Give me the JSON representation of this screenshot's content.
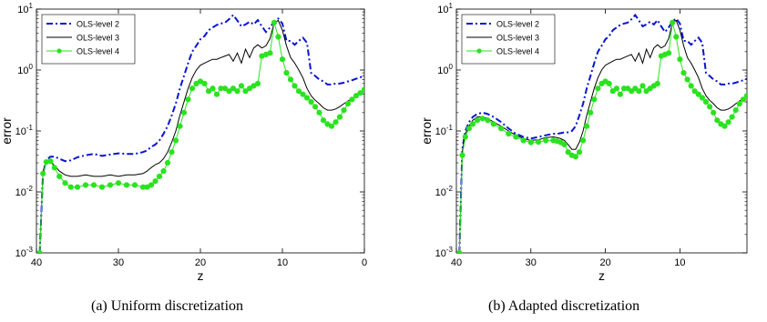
{
  "captions": [
    "(a) Uniform discretization",
    "(b) Adapted discretization"
  ],
  "colors": {
    "level2": "#0a14d2",
    "level3": "#000000",
    "level4": "#29e31f"
  },
  "chart_data": [
    {
      "type": "line",
      "xlabel": "z",
      "ylabel": "error",
      "xlim": [
        40,
        0
      ],
      "x_reversed": true,
      "ylim": [
        0.001,
        10
      ],
      "y_scale": "log",
      "x_ticks": [
        40,
        30,
        20,
        10,
        0
      ],
      "y_tick_labels": [
        "10^-3",
        "10^-2",
        "10^-1",
        "10^0",
        "10^1"
      ],
      "legend": "top-left",
      "series": [
        {
          "name": "OLS-level 2",
          "style": "dash-dot",
          "x": [
            39.6,
            39.2,
            38.8,
            38.3,
            37.8,
            37.2,
            36.5,
            35.8,
            35,
            34,
            33,
            32,
            31,
            30,
            29,
            28,
            27,
            26.5,
            26,
            25.5,
            25,
            24.5,
            24,
            23.5,
            23,
            22.5,
            22,
            21.5,
            21,
            20.5,
            20,
            19.5,
            19,
            18.5,
            18,
            17.5,
            17,
            16.5,
            16,
            15.5,
            15,
            14.5,
            14,
            13.5,
            13,
            12.5,
            12,
            11.5,
            11,
            10.5,
            10,
            9.5,
            9,
            8.5,
            8,
            7.5,
            7,
            6.5,
            6,
            5.5,
            5,
            4.5,
            4,
            3.5,
            3,
            2.5,
            2,
            1.5,
            1,
            0.5,
            0
          ],
          "y": [
            0.001,
            0.02,
            0.033,
            0.038,
            0.038,
            0.035,
            0.032,
            0.033,
            0.037,
            0.04,
            0.042,
            0.039,
            0.041,
            0.043,
            0.042,
            0.042,
            0.045,
            0.048,
            0.055,
            0.06,
            0.07,
            0.09,
            0.12,
            0.18,
            0.28,
            0.5,
            0.8,
            1.3,
            2.0,
            2.5,
            3.2,
            3.6,
            4.5,
            5.0,
            5.5,
            5.8,
            6.0,
            6.8,
            8.0,
            6.5,
            5.2,
            5.6,
            6.2,
            5.6,
            6.6,
            5.2,
            4.2,
            5.0,
            6.3,
            7.0,
            5.8,
            3.0,
            3.0,
            2.6,
            3.0,
            3.4,
            2.8,
            0.9,
            0.8,
            0.7,
            0.65,
            0.58,
            0.58,
            0.6,
            0.6,
            0.62,
            0.65,
            0.68,
            0.72,
            0.76,
            0.8
          ]
        },
        {
          "name": "OLS-level 3",
          "style": "solid",
          "x": [
            39.6,
            39.2,
            38.8,
            38.3,
            37.8,
            37.2,
            36.5,
            35.8,
            35,
            34,
            33,
            32,
            31,
            30,
            29,
            28,
            27,
            26.5,
            26,
            25.5,
            25,
            24.5,
            24,
            23.5,
            23,
            22.5,
            22,
            21.5,
            21,
            20.5,
            20,
            19.5,
            19,
            18.5,
            18,
            17.5,
            17,
            16.5,
            16,
            15.5,
            15,
            14.5,
            14,
            13.5,
            13,
            12.5,
            12,
            11.5,
            11,
            10.5,
            10,
            9.5,
            9,
            8.5,
            8,
            7.5,
            7,
            6.5,
            6,
            5.5,
            5,
            4.5,
            4,
            3.5,
            3,
            2.5,
            2,
            1.5,
            1,
            0.5,
            0
          ],
          "y": [
            0.001,
            0.022,
            0.03,
            0.032,
            0.027,
            0.022,
            0.019,
            0.018,
            0.018,
            0.019,
            0.018,
            0.018,
            0.019,
            0.018,
            0.019,
            0.019,
            0.02,
            0.022,
            0.025,
            0.028,
            0.03,
            0.035,
            0.045,
            0.065,
            0.1,
            0.18,
            0.3,
            0.5,
            0.75,
            1.0,
            1.2,
            1.3,
            1.4,
            1.5,
            1.5,
            1.6,
            1.7,
            1.8,
            1.4,
            1.9,
            1.3,
            2.2,
            1.6,
            2.3,
            2.6,
            2.3,
            2.5,
            3.3,
            6.0,
            6.5,
            4.5,
            2.5,
            1.6,
            1.3,
            1.0,
            0.75,
            0.5,
            0.38,
            0.32,
            0.28,
            0.24,
            0.22,
            0.22,
            0.23,
            0.25,
            0.28,
            0.31,
            0.34,
            0.37,
            0.41,
            0.45
          ]
        },
        {
          "name": "OLS-level 4",
          "style": "solid-markers",
          "x": [
            39.6,
            39.2,
            38.8,
            38.3,
            37.8,
            37.2,
            36.5,
            35.8,
            35,
            34,
            33,
            32,
            31,
            30,
            29,
            28,
            27,
            26.5,
            26,
            25.5,
            25,
            24.5,
            24,
            23.5,
            23,
            22.5,
            22,
            21.5,
            21,
            20.5,
            20,
            19.5,
            19,
            18.5,
            18,
            17.5,
            17,
            16.5,
            16,
            15.5,
            15,
            14.5,
            14,
            13.5,
            13,
            12.5,
            12,
            11.5,
            11,
            10.5,
            10,
            9.5,
            9,
            8.5,
            8,
            7.5,
            7,
            6.5,
            6,
            5.5,
            5,
            4.5,
            4,
            3.5,
            3,
            2.5,
            2,
            1.5,
            1,
            0.5,
            0
          ],
          "y": [
            0.001,
            0.02,
            0.031,
            0.032,
            0.025,
            0.018,
            0.014,
            0.012,
            0.012,
            0.013,
            0.013,
            0.012,
            0.013,
            0.014,
            0.013,
            0.013,
            0.012,
            0.012,
            0.013,
            0.015,
            0.018,
            0.022,
            0.03,
            0.045,
            0.07,
            0.12,
            0.2,
            0.33,
            0.5,
            0.6,
            0.65,
            0.6,
            0.45,
            0.5,
            0.4,
            0.5,
            0.5,
            0.45,
            0.5,
            0.45,
            0.55,
            0.45,
            0.5,
            0.55,
            0.6,
            1.7,
            1.8,
            1.9,
            6.0,
            3.5,
            1.5,
            0.9,
            0.7,
            0.55,
            0.45,
            0.4,
            0.35,
            0.3,
            0.25,
            0.2,
            0.15,
            0.13,
            0.12,
            0.14,
            0.17,
            0.22,
            0.28,
            0.33,
            0.38,
            0.42,
            0.48
          ]
        }
      ]
    },
    {
      "type": "line",
      "xlabel": "z",
      "ylabel": "error",
      "xlim": [
        40,
        1
      ],
      "x_reversed": true,
      "ylim": [
        0.001,
        10
      ],
      "y_scale": "log",
      "x_ticks": [
        40,
        30,
        20,
        10
      ],
      "y_tick_labels": [
        "10^-3",
        "10^-2",
        "10^-1",
        "10^0",
        "10^1"
      ],
      "legend": "top-left",
      "series": [
        {
          "name": "OLS-level 2",
          "style": "dash-dot",
          "x": [
            39.6,
            39.2,
            38.8,
            38.3,
            37.8,
            37.2,
            36.5,
            35.8,
            35,
            34,
            33,
            32,
            31,
            30,
            29,
            28,
            27,
            26.5,
            26,
            25.5,
            25,
            24.5,
            24,
            23.5,
            23,
            22.5,
            22,
            21.5,
            21,
            20.5,
            20,
            19.5,
            19,
            18.5,
            18,
            17.5,
            17,
            16.5,
            16,
            15.5,
            15,
            14.5,
            14,
            13.5,
            13,
            12.5,
            12,
            11.5,
            11,
            10.5,
            10,
            9.5,
            9,
            8.5,
            8,
            7.5,
            7,
            6.5,
            6,
            5.5,
            5,
            4.5,
            4,
            3.5,
            3,
            2.5,
            2,
            1.5,
            1
          ],
          "y": [
            0.001,
            0.05,
            0.1,
            0.14,
            0.17,
            0.19,
            0.2,
            0.19,
            0.17,
            0.14,
            0.11,
            0.09,
            0.08,
            0.075,
            0.08,
            0.085,
            0.09,
            0.09,
            0.092,
            0.095,
            0.095,
            0.1,
            0.12,
            0.18,
            0.28,
            0.5,
            0.8,
            1.3,
            2.0,
            2.5,
            3.2,
            3.6,
            4.5,
            5.0,
            5.5,
            5.8,
            6.0,
            6.8,
            8.0,
            6.5,
            5.2,
            5.6,
            6.2,
            5.6,
            6.6,
            5.2,
            4.2,
            5.0,
            6.3,
            7.0,
            5.8,
            3.0,
            3.0,
            2.6,
            3.0,
            3.4,
            2.8,
            0.9,
            0.8,
            0.7,
            0.65,
            0.58,
            0.58,
            0.6,
            0.6,
            0.62,
            0.65,
            0.68,
            0.72
          ]
        },
        {
          "name": "OLS-level 3",
          "style": "solid",
          "x": [
            39.6,
            39.2,
            38.8,
            38.3,
            37.8,
            37.2,
            36.5,
            35.8,
            35,
            34,
            33,
            32,
            31,
            30,
            29,
            28,
            27,
            26.5,
            26,
            25.5,
            25,
            24.5,
            24,
            23.5,
            23,
            22.5,
            22,
            21.5,
            21,
            20.5,
            20,
            19.5,
            19,
            18.5,
            18,
            17.5,
            17,
            16.5,
            16,
            15.5,
            15,
            14.5,
            14,
            13.5,
            13,
            12.5,
            12,
            11.5,
            11,
            10.5,
            10,
            9.5,
            9,
            8.5,
            8,
            7.5,
            7,
            6.5,
            6,
            5.5,
            5,
            4.5,
            4,
            3.5,
            3,
            2.5,
            2,
            1.5,
            1
          ],
          "y": [
            0.001,
            0.045,
            0.09,
            0.12,
            0.15,
            0.17,
            0.17,
            0.16,
            0.14,
            0.12,
            0.1,
            0.085,
            0.075,
            0.07,
            0.072,
            0.078,
            0.08,
            0.078,
            0.075,
            0.07,
            0.06,
            0.05,
            0.05,
            0.065,
            0.1,
            0.18,
            0.3,
            0.5,
            0.75,
            1.0,
            1.2,
            1.3,
            1.4,
            1.5,
            1.5,
            1.6,
            1.7,
            1.8,
            1.4,
            1.9,
            1.3,
            2.2,
            1.6,
            2.3,
            2.6,
            2.3,
            2.5,
            3.3,
            6.0,
            6.5,
            4.5,
            2.5,
            1.6,
            1.3,
            1.0,
            0.75,
            0.5,
            0.38,
            0.32,
            0.28,
            0.24,
            0.22,
            0.22,
            0.23,
            0.25,
            0.28,
            0.31,
            0.34,
            0.37
          ]
        },
        {
          "name": "OLS-level 4",
          "style": "solid-markers",
          "x": [
            39.6,
            39.2,
            38.8,
            38.3,
            37.8,
            37.2,
            36.5,
            35.8,
            35,
            34,
            33,
            32,
            31,
            30,
            29,
            28,
            27,
            26.5,
            26,
            25.5,
            25,
            24.5,
            24,
            23.5,
            23,
            22.5,
            22,
            21.5,
            21,
            20.5,
            20,
            19.5,
            19,
            18.5,
            18,
            17.5,
            17,
            16.5,
            16,
            15.5,
            15,
            14.5,
            14,
            13.5,
            13,
            12.5,
            12,
            11.5,
            11,
            10.5,
            10,
            9.5,
            9,
            8.5,
            8,
            7.5,
            7,
            6.5,
            6,
            5.5,
            5,
            4.5,
            4,
            3.5,
            3,
            2.5,
            2,
            1.5,
            1
          ],
          "y": [
            0.001,
            0.04,
            0.08,
            0.11,
            0.13,
            0.15,
            0.16,
            0.15,
            0.13,
            0.11,
            0.09,
            0.08,
            0.07,
            0.065,
            0.066,
            0.07,
            0.07,
            0.068,
            0.065,
            0.06,
            0.045,
            0.04,
            0.038,
            0.045,
            0.07,
            0.12,
            0.2,
            0.33,
            0.5,
            0.6,
            0.65,
            0.6,
            0.45,
            0.5,
            0.4,
            0.5,
            0.5,
            0.45,
            0.5,
            0.45,
            0.55,
            0.45,
            0.5,
            0.55,
            0.6,
            1.7,
            1.8,
            1.9,
            6.0,
            3.5,
            1.5,
            0.9,
            0.7,
            0.55,
            0.45,
            0.4,
            0.35,
            0.3,
            0.25,
            0.2,
            0.15,
            0.13,
            0.12,
            0.14,
            0.17,
            0.22,
            0.28,
            0.33,
            0.38
          ]
        }
      ]
    }
  ]
}
